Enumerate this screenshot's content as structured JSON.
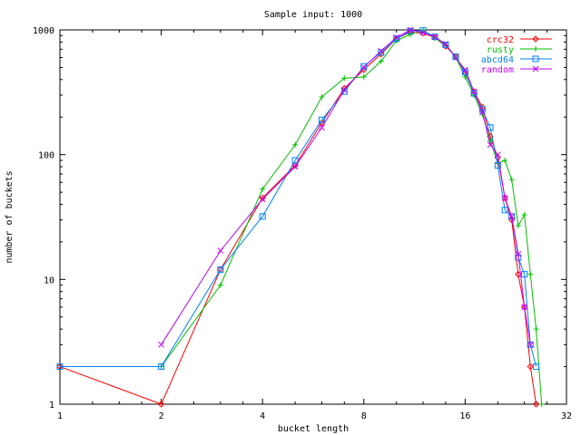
{
  "chart_data": {
    "type": "line",
    "title": "Sample input: 1000",
    "xlabel": "bucket length",
    "ylabel": "number of buckets",
    "x_scale": "log2",
    "y_scale": "log10",
    "xlim": [
      1,
      32
    ],
    "ylim": [
      1,
      1000
    ],
    "x_ticks": [
      {
        "value": 1,
        "label": "1"
      },
      {
        "value": 2,
        "label": "2"
      },
      {
        "value": 4,
        "label": "4"
      },
      {
        "value": 8,
        "label": "8"
      },
      {
        "value": 16,
        "label": "16"
      },
      {
        "value": 32,
        "label": "32"
      }
    ],
    "y_ticks": [
      {
        "value": 1,
        "label": "1"
      },
      {
        "value": 10,
        "label": "10"
      },
      {
        "value": 100,
        "label": "100"
      },
      {
        "value": 1000,
        "label": "1000"
      }
    ],
    "grid": false,
    "legend_position": "top-right",
    "series": [
      {
        "name": "crc32",
        "color": "#ff0000",
        "marker": "diamond",
        "points": [
          [
            1,
            2
          ],
          [
            2,
            1
          ],
          [
            3,
            12
          ],
          [
            4,
            45
          ],
          [
            5,
            82
          ],
          [
            6,
            180
          ],
          [
            7,
            340
          ],
          [
            8,
            480
          ],
          [
            9,
            640
          ],
          [
            10,
            850
          ],
          [
            11,
            960
          ],
          [
            12,
            940
          ],
          [
            13,
            870
          ],
          [
            14,
            740
          ],
          [
            15,
            610
          ],
          [
            16,
            450
          ],
          [
            17,
            320
          ],
          [
            18,
            240
          ],
          [
            19,
            140
          ],
          [
            20,
            95
          ],
          [
            21,
            45
          ],
          [
            22,
            30
          ],
          [
            23,
            11
          ],
          [
            24,
            6
          ],
          [
            25,
            2
          ],
          [
            26,
            1
          ]
        ]
      },
      {
        "name": "rusty",
        "color": "#00c000",
        "marker": "plus",
        "points": [
          [
            2,
            2
          ],
          [
            3,
            9
          ],
          [
            4,
            53
          ],
          [
            5,
            120
          ],
          [
            6,
            290
          ],
          [
            7,
            410
          ],
          [
            8,
            420
          ],
          [
            9,
            560
          ],
          [
            10,
            820
          ],
          [
            11,
            920
          ],
          [
            12,
            1000
          ],
          [
            13,
            860
          ],
          [
            14,
            760
          ],
          [
            15,
            600
          ],
          [
            16,
            420
          ],
          [
            17,
            300
          ],
          [
            18,
            210
          ],
          [
            19,
            130
          ],
          [
            20,
            85
          ],
          [
            21,
            90
          ],
          [
            22,
            63
          ],
          [
            23,
            27
          ],
          [
            24,
            33
          ],
          [
            25,
            11
          ],
          [
            26,
            4
          ],
          [
            27,
            1
          ]
        ]
      },
      {
        "name": "abcd64",
        "color": "#0080ff",
        "marker": "square",
        "points": [
          [
            1,
            2
          ],
          [
            2,
            2
          ],
          [
            3,
            12
          ],
          [
            4,
            32
          ],
          [
            5,
            90
          ],
          [
            6,
            190
          ],
          [
            7,
            320
          ],
          [
            8,
            510
          ],
          [
            9,
            660
          ],
          [
            10,
            850
          ],
          [
            11,
            980
          ],
          [
            12,
            990
          ],
          [
            13,
            880
          ],
          [
            14,
            760
          ],
          [
            15,
            610
          ],
          [
            16,
            460
          ],
          [
            17,
            310
          ],
          [
            18,
            230
          ],
          [
            19,
            165
          ],
          [
            20,
            82
          ],
          [
            21,
            36
          ],
          [
            22,
            32
          ],
          [
            23,
            15
          ],
          [
            24,
            11
          ],
          [
            25,
            3
          ],
          [
            26,
            2
          ]
        ]
      },
      {
        "name": "random",
        "color": "#c000ff",
        "marker": "cross",
        "points": [
          [
            2,
            3
          ],
          [
            3,
            17
          ],
          [
            4,
            44
          ],
          [
            5,
            80
          ],
          [
            6,
            165
          ],
          [
            7,
            330
          ],
          [
            8,
            500
          ],
          [
            9,
            680
          ],
          [
            10,
            870
          ],
          [
            11,
            1000
          ],
          [
            12,
            950
          ],
          [
            13,
            880
          ],
          [
            14,
            770
          ],
          [
            15,
            600
          ],
          [
            16,
            480
          ],
          [
            17,
            320
          ],
          [
            18,
            220
          ],
          [
            19,
            120
          ],
          [
            20,
            100
          ],
          [
            21,
            45
          ],
          [
            22,
            32
          ],
          [
            23,
            16
          ],
          [
            24,
            6
          ],
          [
            25,
            3
          ]
        ]
      }
    ]
  }
}
